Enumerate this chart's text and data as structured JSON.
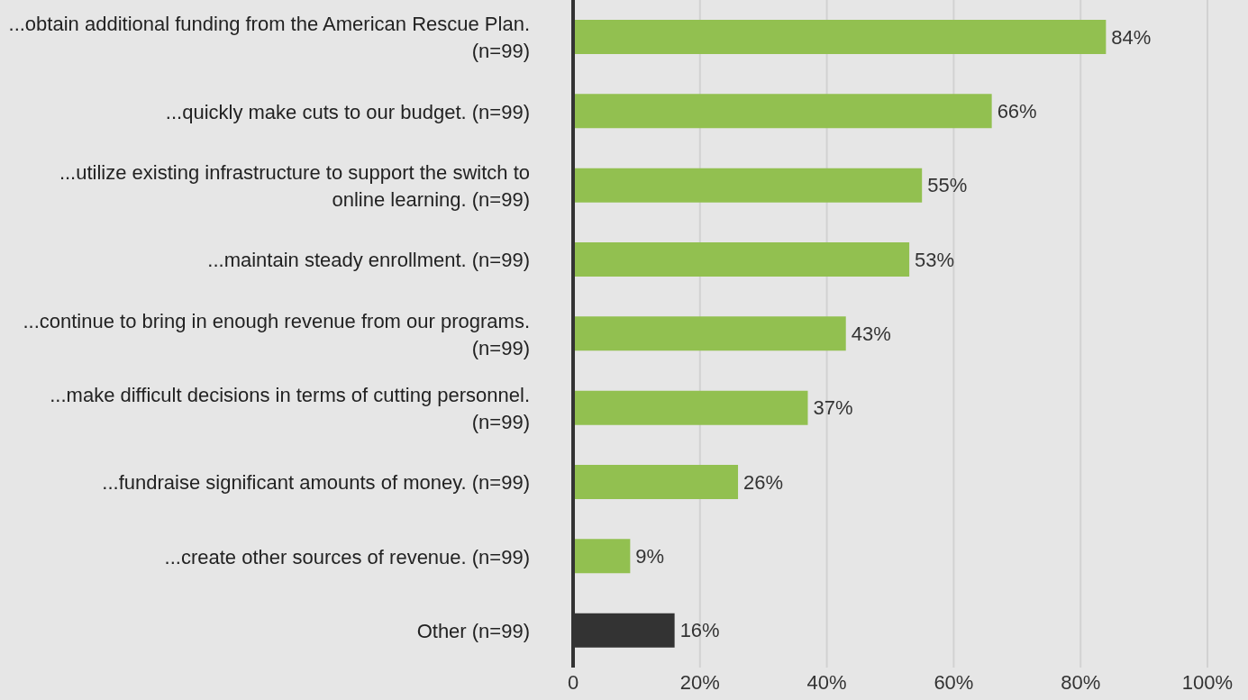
{
  "chart_data": {
    "type": "bar",
    "orientation": "horizontal",
    "categories": [
      "...obtain additional funding from the American Rescue Plan. (n=99)",
      "...quickly make cuts to our budget.  (n=99)",
      "...utilize existing infrastructure to support the switch to online learning. (n=99)",
      "...maintain steady enrollment. (n=99)",
      "...continue to bring in enough revenue from our programs. (n=99)",
      "...make difficult decisions in terms of cutting personnel. (n=99)",
      "...fundraise significant amounts of money. (n=99)",
      "...create other sources of revenue. (n=99)",
      "Other (n=99)"
    ],
    "values": [
      84,
      66,
      55,
      53,
      43,
      37,
      26,
      9,
      16
    ],
    "colors": [
      "#92c050",
      "#92c050",
      "#92c050",
      "#92c050",
      "#92c050",
      "#92c050",
      "#92c050",
      "#92c050",
      "#333333"
    ],
    "value_labels": [
      "84%",
      "66%",
      "55%",
      "53%",
      "43%",
      "37%",
      "26%",
      "9%",
      "16%"
    ],
    "xlim": [
      0,
      100
    ],
    "xticks": [
      0,
      {
        "value": 20,
        "label": "20%"
      },
      {
        "value": 40,
        "label": "40%"
      },
      {
        "value": 60,
        "label": "60%"
      },
      {
        "value": 80,
        "label": "80%"
      },
      {
        "value": 100,
        "label": "100%"
      }
    ],
    "grid": "x"
  }
}
